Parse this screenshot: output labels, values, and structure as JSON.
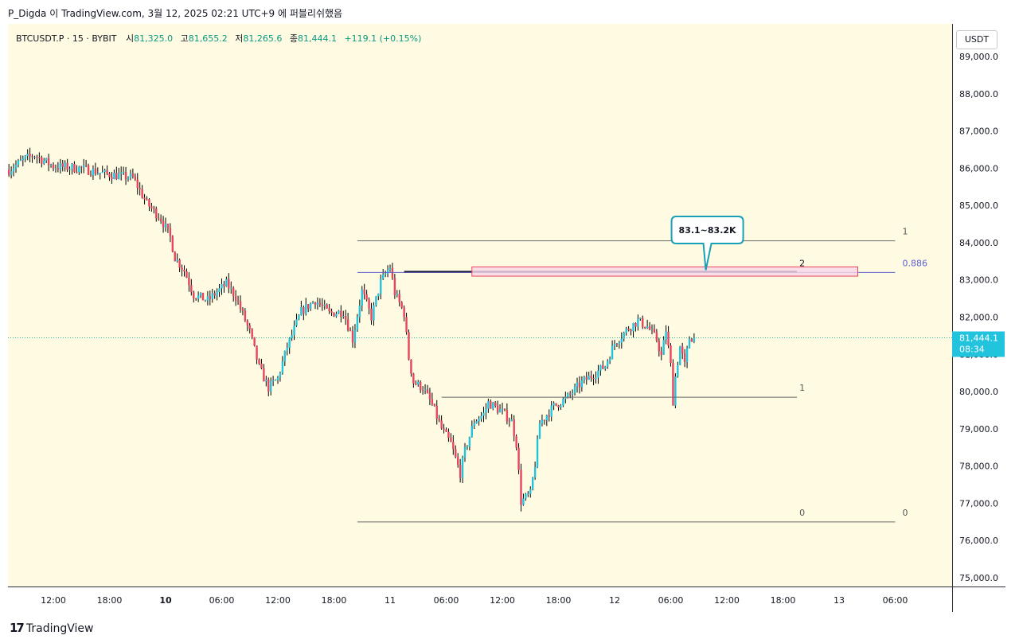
{
  "header": {
    "text": "P_Digda 이 TradingView.com, 3월 12, 2025 02:21 UTC+9 에 퍼블리쉬했음"
  },
  "legend": {
    "symbol": "BTCUSDT.P · 15 · BYBIT",
    "open_label": "시",
    "open_value": "81,325.0",
    "high_label": "고",
    "high_value": "81,655.2",
    "low_label": "저",
    "low_value": "81,265.6",
    "close_label": "종",
    "close_value": "81,444.1",
    "change": "+119.1 (+0.15%)"
  },
  "currency_button": "USDT",
  "last_price": {
    "value": "81,444.1",
    "countdown": "08:34"
  },
  "brand": "TradingView",
  "colors": {
    "up": "#22c3dd",
    "down": "#e8445c",
    "chart_bg": "#fffbe3",
    "fib_line": "#5b5fd0",
    "zone_fill": "#f8d7e8",
    "zone_border": "#e8445c",
    "callout_border": "#1aa0b5"
  },
  "chart_data": {
    "type": "candlestick",
    "symbol": "BTCUSDT.P",
    "interval": "15",
    "ylim": [
      74700,
      89300
    ],
    "y_ticks": [
      75000,
      76000,
      77000,
      78000,
      79000,
      80000,
      81000,
      82000,
      83000,
      84000,
      85000,
      86000,
      87000,
      88000,
      89000
    ],
    "y_tick_labels": [
      "75,000.0",
      "76,000.0",
      "77,000.0",
      "78,000.0",
      "79,000.0",
      "80,000.0",
      "81,000.0",
      "82,000.0",
      "83,000.0",
      "84,000.0",
      "85,000.0",
      "86,000.0",
      "87,000.0",
      "88,000.0",
      "89,000.0"
    ],
    "x_ticks": [
      {
        "label": "12:00",
        "bar": 0,
        "bold": false
      },
      {
        "label": "18:00",
        "bar": 24,
        "bold": false
      },
      {
        "label": "10",
        "bar": 48,
        "bold": true
      },
      {
        "label": "06:00",
        "bar": 72,
        "bold": false
      },
      {
        "label": "12:00",
        "bar": 96,
        "bold": false
      },
      {
        "label": "18:00",
        "bar": 120,
        "bold": false
      },
      {
        "label": "11",
        "bar": 144,
        "bold": false
      },
      {
        "label": "06:00",
        "bar": 168,
        "bold": false
      },
      {
        "label": "12:00",
        "bar": 192,
        "bold": false
      },
      {
        "label": "18:00",
        "bar": 216,
        "bold": false
      },
      {
        "label": "12",
        "bar": 240,
        "bold": false
      },
      {
        "label": "06:00",
        "bar": 264,
        "bold": false
      },
      {
        "label": "12:00",
        "bar": 288,
        "bold": false
      },
      {
        "label": "18:00",
        "bar": 312,
        "bold": false
      },
      {
        "label": "13",
        "bar": 336,
        "bold": false
      },
      {
        "label": "06:00",
        "bar": 360,
        "bold": false
      }
    ],
    "price_path": [
      [
        -19,
        85950
      ],
      [
        -12,
        86250
      ],
      [
        -8,
        86350
      ],
      [
        0,
        86050
      ],
      [
        12,
        86000
      ],
      [
        22,
        85850
      ],
      [
        34,
        85750
      ],
      [
        40,
        85050
      ],
      [
        46,
        84650
      ],
      [
        50,
        84150
      ],
      [
        52,
        83600
      ],
      [
        56,
        83250
      ],
      [
        60,
        82600
      ],
      [
        66,
        82450
      ],
      [
        74,
        82900
      ],
      [
        78,
        82550
      ],
      [
        84,
        81600
      ],
      [
        88,
        80650
      ],
      [
        92,
        80100
      ],
      [
        96,
        80350
      ],
      [
        100,
        81200
      ],
      [
        106,
        82150
      ],
      [
        112,
        82450
      ],
      [
        118,
        82100
      ],
      [
        124,
        82150
      ],
      [
        128,
        81400
      ],
      [
        132,
        82700
      ],
      [
        136,
        82000
      ],
      [
        140,
        82950
      ],
      [
        144,
        83350
      ],
      [
        146,
        82650
      ],
      [
        150,
        82100
      ],
      [
        152,
        80900
      ],
      [
        154,
        80250
      ],
      [
        158,
        80100
      ],
      [
        162,
        79650
      ],
      [
        166,
        79000
      ],
      [
        170,
        78600
      ],
      [
        174,
        77800
      ],
      [
        176,
        78400
      ],
      [
        180,
        79200
      ],
      [
        184,
        79400
      ],
      [
        186,
        79700
      ],
      [
        192,
        79450
      ],
      [
        196,
        79200
      ],
      [
        198,
        78600
      ],
      [
        200,
        77050
      ],
      [
        204,
        77250
      ],
      [
        206,
        78050
      ],
      [
        208,
        79150
      ],
      [
        214,
        79600
      ],
      [
        220,
        79850
      ],
      [
        226,
        80250
      ],
      [
        232,
        80500
      ],
      [
        236,
        80700
      ],
      [
        240,
        81300
      ],
      [
        246,
        81700
      ],
      [
        250,
        81900
      ],
      [
        254,
        81750
      ],
      [
        258,
        81400
      ],
      [
        260,
        80950
      ],
      [
        262,
        81650
      ],
      [
        264,
        80700
      ],
      [
        265,
        79750
      ],
      [
        266,
        80400
      ],
      [
        268,
        81200
      ],
      [
        270,
        80700
      ],
      [
        272,
        81450
      ],
      [
        274,
        81444
      ]
    ],
    "annotations": {
      "fib_upper_left": {
        "from_bar": 130,
        "to_bar": 360,
        "levels": [
          {
            "value": 84050,
            "label": "1"
          },
          {
            "value": 83200,
            "label": "0.886"
          },
          {
            "value": 76500,
            "label": "0"
          }
        ]
      },
      "fib_lower": {
        "from_bar": 166,
        "to_bar": 318,
        "levels": [
          {
            "value": 79850,
            "label": "1"
          },
          {
            "value": 83200,
            "label": "2"
          },
          {
            "value": 76500,
            "label": "0"
          }
        ]
      },
      "zone": {
        "from_bar": 179,
        "to_bar": 344,
        "low": 83100,
        "high": 83350
      },
      "callout": {
        "text": "83.1~83.2K",
        "bar": 279,
        "price": 83200
      },
      "current_price_line": 81444.1
    }
  }
}
